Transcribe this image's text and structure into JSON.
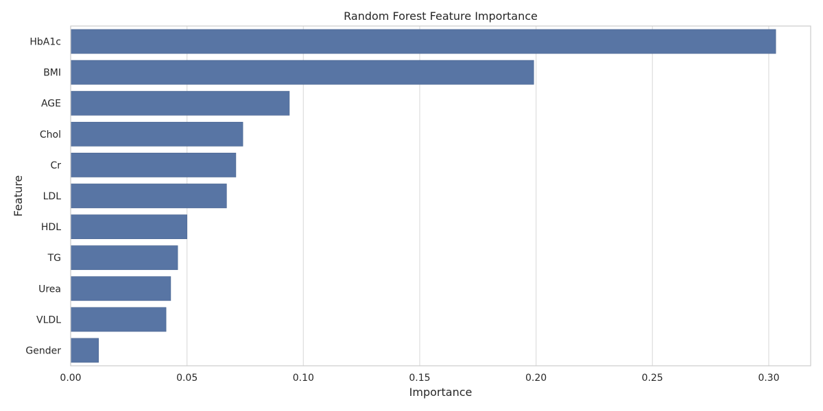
{
  "chart_data": {
    "type": "bar",
    "orientation": "horizontal",
    "title": "Random Forest Feature Importance",
    "xlabel": "Importance",
    "ylabel": "Feature",
    "categories": [
      "HbA1c",
      "BMI",
      "AGE",
      "Chol",
      "Cr",
      "LDL",
      "HDL",
      "TG",
      "Urea",
      "VLDL",
      "Gender"
    ],
    "values": [
      0.303,
      0.199,
      0.094,
      0.074,
      0.071,
      0.067,
      0.05,
      0.046,
      0.043,
      0.041,
      0.012
    ],
    "xlim": [
      0,
      0.318
    ],
    "xticks": [
      "0.00",
      "0.05",
      "0.10",
      "0.15",
      "0.20",
      "0.25",
      "0.30"
    ],
    "grid": "vertical",
    "colors": {
      "bar": "#5875a4",
      "bar_edge": "#4a6590",
      "grid": "#dddddd",
      "frame": "#cccccc"
    }
  }
}
